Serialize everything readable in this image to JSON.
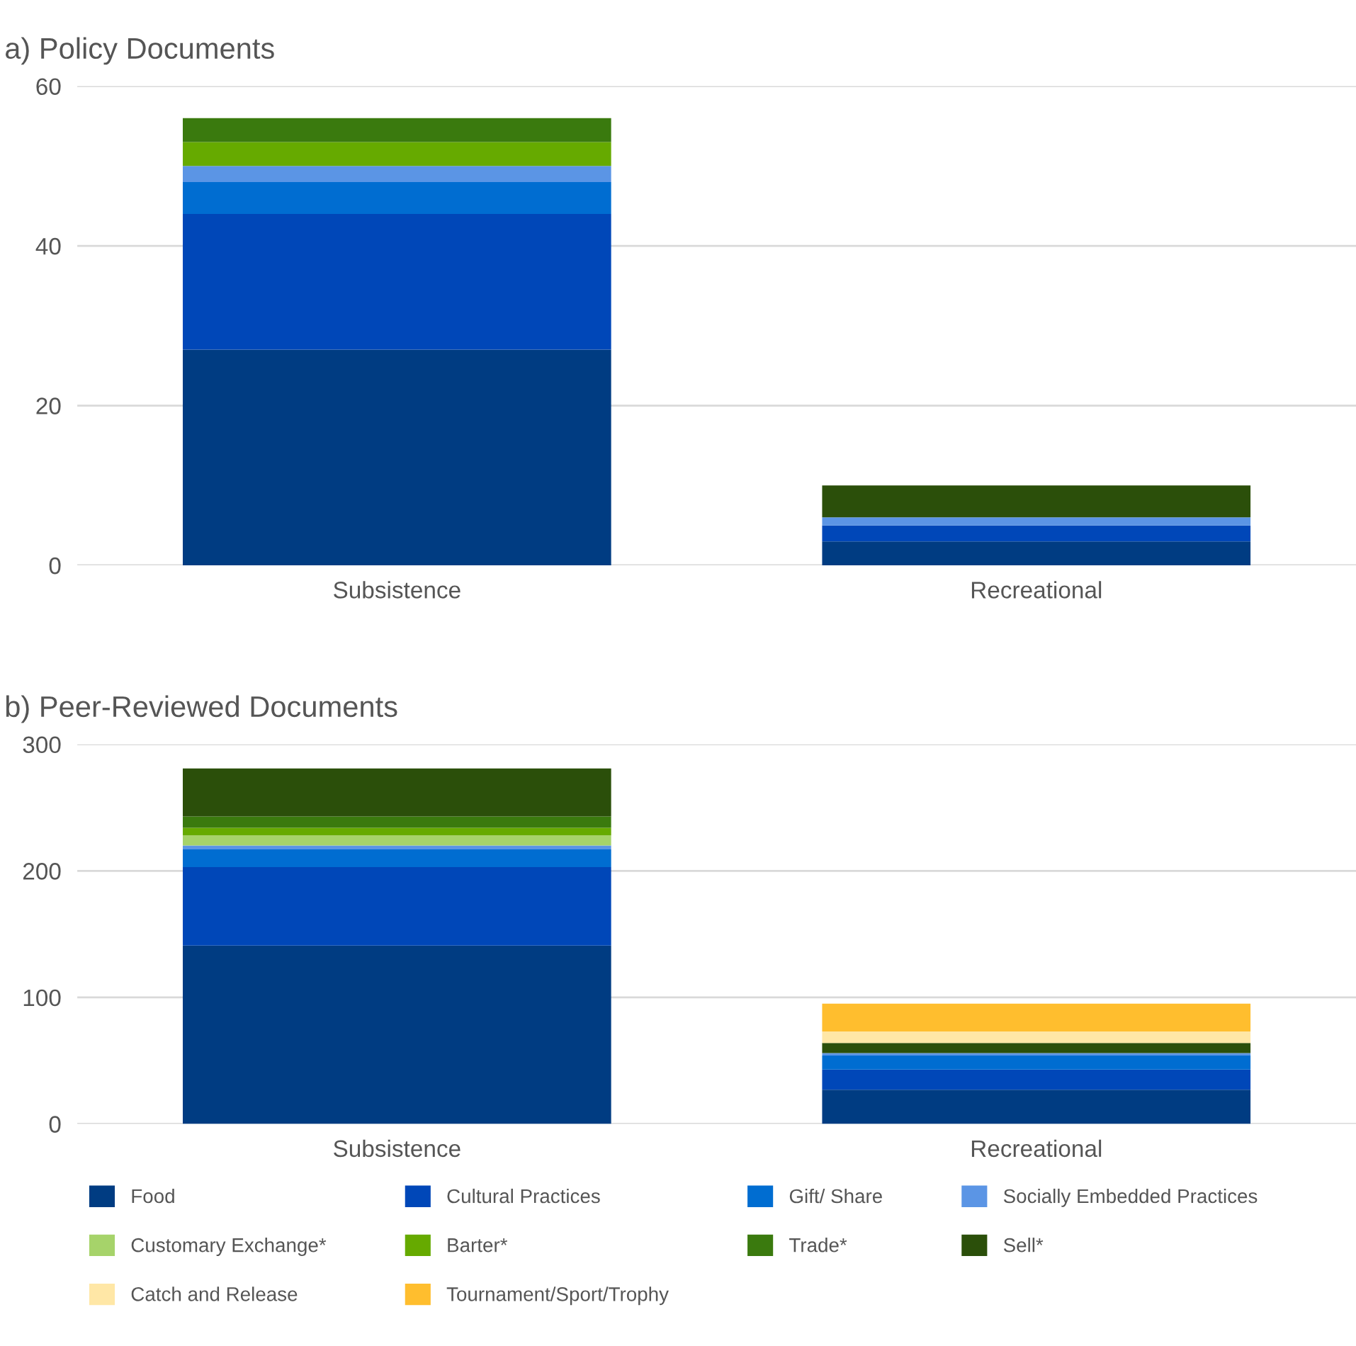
{
  "chart_data": [
    {
      "type": "bar",
      "title": "a) Policy Documents",
      "categories": [
        "Subsistence",
        "Recreational"
      ],
      "stacked": true,
      "ylim": [
        0,
        60
      ],
      "yticks": [
        0,
        20,
        40,
        60
      ],
      "grid": "y",
      "legend": false,
      "series": [
        {
          "color": "#003c82",
          "values": [
            27,
            3
          ]
        },
        {
          "color": "#0047b8",
          "values": [
            17,
            2
          ]
        },
        {
          "color": "#006dd1",
          "values": [
            4,
            0
          ]
        },
        {
          "color": "#5b95e5",
          "values": [
            2,
            1
          ]
        },
        {
          "color": "#66aa00",
          "values": [
            3,
            0
          ]
        },
        {
          "color": "#3a7a0e",
          "values": [
            3,
            0
          ]
        },
        {
          "color": "#2b4f0a",
          "values": [
            0,
            4
          ]
        }
      ]
    },
    {
      "type": "bar",
      "title": "b) Peer-Reviewed Documents",
      "categories": [
        "Subsistence",
        "Recreational"
      ],
      "stacked": true,
      "ylim": [
        0,
        300
      ],
      "yticks": [
        0,
        100,
        200,
        300
      ],
      "grid": "y",
      "legend": "bottom",
      "series": [
        {
          "name": "Food",
          "color": "#003c82",
          "values": [
            141,
            27
          ]
        },
        {
          "name": "Cultural Practices",
          "color": "#0047b8",
          "values": [
            62,
            16
          ]
        },
        {
          "name": "Gift/ Share",
          "color": "#006dd1",
          "values": [
            14,
            11
          ]
        },
        {
          "name": "Socially Embedded Practices",
          "color": "#5b95e5",
          "values": [
            3,
            2
          ]
        },
        {
          "name": "Customary Exchange*",
          "color": "#a6d36a",
          "values": [
            8,
            0
          ]
        },
        {
          "name": "Barter*",
          "color": "#66aa00",
          "values": [
            6,
            0
          ]
        },
        {
          "name": "Trade*",
          "color": "#3a7a0e",
          "values": [
            9,
            0
          ]
        },
        {
          "name": "Sell*",
          "color": "#2b4f0a",
          "values": [
            38,
            8
          ]
        },
        {
          "name": "Catch and Release",
          "color": "#ffe7a6",
          "values": [
            0,
            9
          ]
        },
        {
          "name": "Tournament/Sport/Trophy",
          "color": "#ffbe2e",
          "values": [
            0,
            22
          ]
        }
      ]
    }
  ]
}
